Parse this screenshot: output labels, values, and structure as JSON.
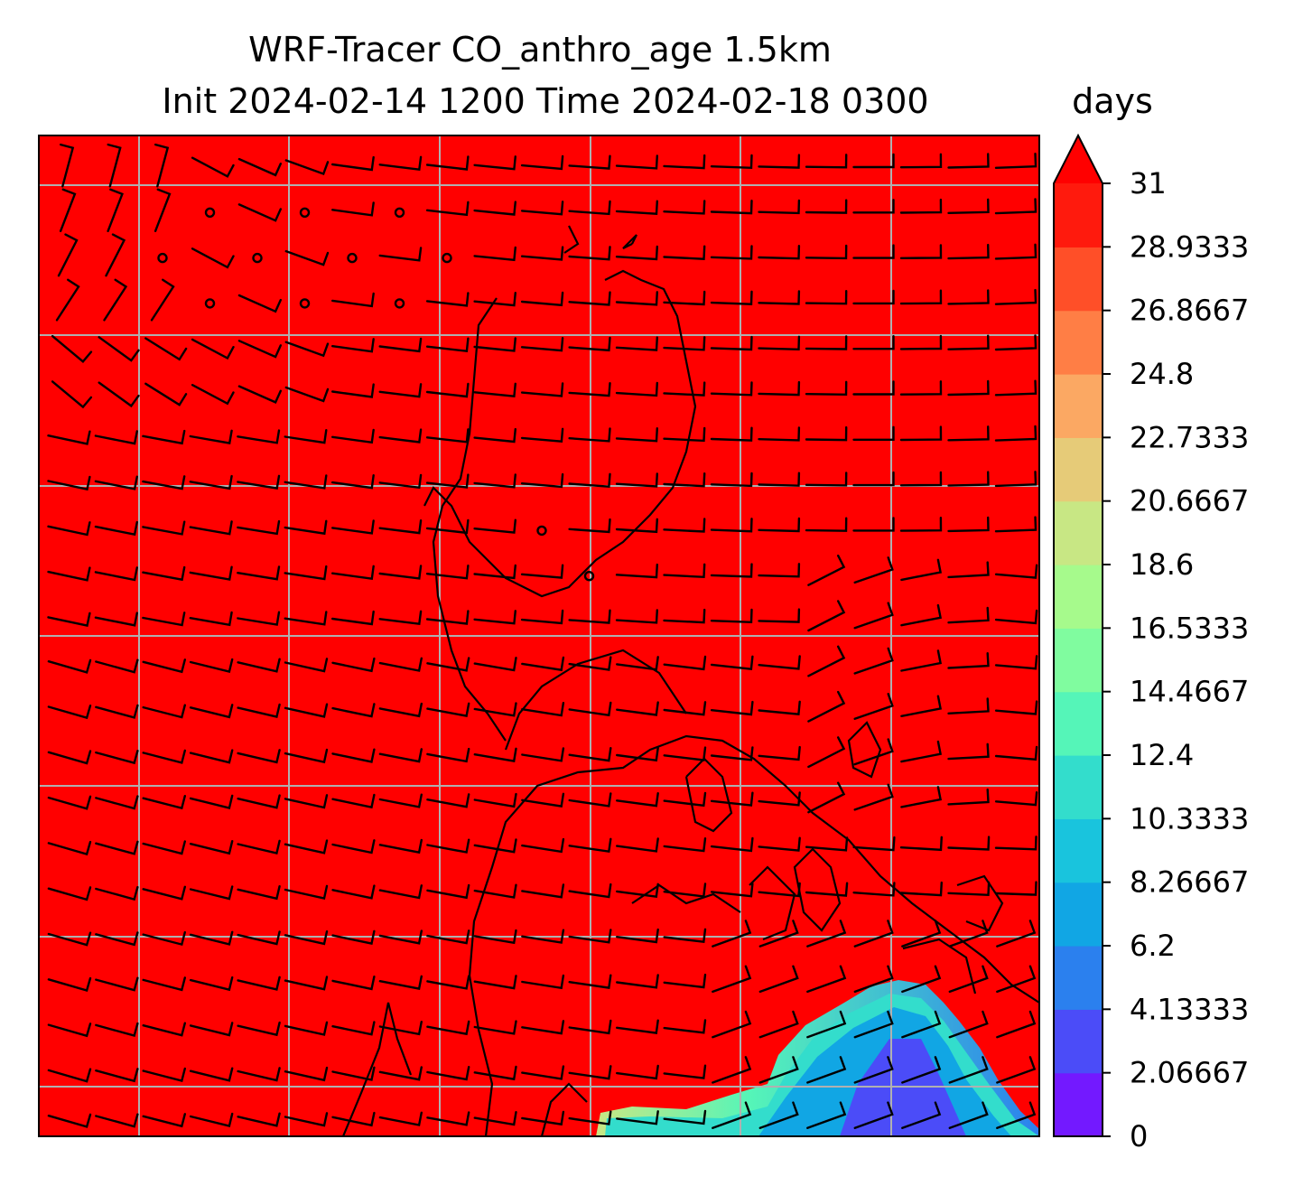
{
  "chart_data": {
    "type": "heatmap",
    "title_lines": [
      "WRF-Tracer CO_anthro_age 1.5km",
      "Init 2024-02-14 1200 Time 2024-02-18 0300"
    ],
    "colorbar": {
      "unit": "days",
      "range": [
        0,
        31
      ],
      "extend": "max",
      "tick_labels": [
        "0",
        "2.06667",
        "4.13333",
        "6.2",
        "8.26667",
        "10.3333",
        "12.4",
        "14.4667",
        "16.5333",
        "18.6",
        "20.6667",
        "22.7333",
        "24.8",
        "26.8667",
        "28.9333",
        "31"
      ],
      "colors": [
        "#7319ff",
        "#4b4cf8",
        "#2b80ee",
        "#11a6e4",
        "#19c4dd",
        "#33ddcc",
        "#55f5b8",
        "#80fc9f",
        "#a6fa8c",
        "#c8e784",
        "#e6cb78",
        "#fba863",
        "#ff7e45",
        "#ff4f28",
        "#ff1a0d"
      ],
      "over_color": "#ff0000"
    },
    "field": {
      "background_value": 31,
      "background_color": "#ff0000",
      "low_age_region": "bottom-right"
    },
    "grid": true,
    "overlays": [
      "wind barbs",
      "coastlines"
    ]
  }
}
